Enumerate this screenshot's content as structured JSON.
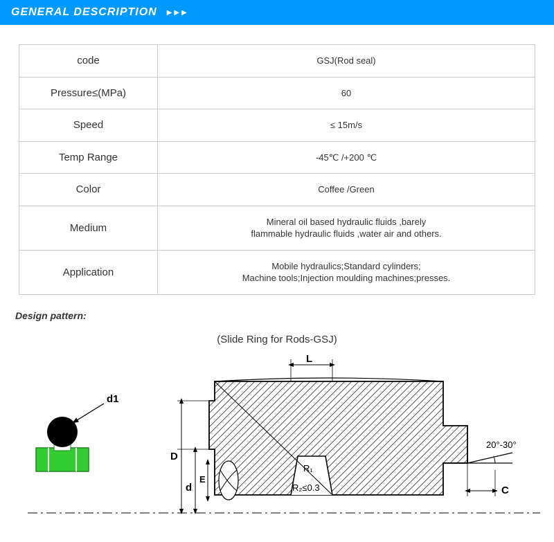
{
  "header": {
    "title": "GENERAL DESCRIPTION",
    "bg_color": "#0099ff",
    "text_color": "#ffffff"
  },
  "spec_table": {
    "border_color": "#cccccc",
    "rows": [
      {
        "label": "code",
        "value": "GSJ(Rod seal)"
      },
      {
        "label": "Pressure≤(MPa)",
        "value": "60"
      },
      {
        "label": "Speed",
        "value": "≤ 15m/s"
      },
      {
        "label": "Temp Range",
        "value": "-45℃ /+200 ℃"
      },
      {
        "label": "Color",
        "value": "Coffee /Green"
      },
      {
        "label": "Medium",
        "value": "Mineral oil based hydraulic fluids ,barely\nflammable hydraulic fluids ,water air and others."
      },
      {
        "label": "Application",
        "value": "Mobile hydraulics;Standard cylinders;\nMachine tools;Injection moulding machines;presses."
      }
    ]
  },
  "design": {
    "section_label": "Design pattern:",
    "title": "(Slide Ring for Rods-GSJ)"
  },
  "diagram": {
    "stroke_color": "#000000",
    "hatch_color": "#555555",
    "green_fill": "#33cc33",
    "black_fill": "#000000",
    "labels": {
      "d1": "d1",
      "L": "L",
      "D": "D",
      "d": "d",
      "E": "E",
      "R1": "R₁",
      "R2": "R₂≤0.3",
      "angle": "20°-30°",
      "C": "C"
    }
  }
}
